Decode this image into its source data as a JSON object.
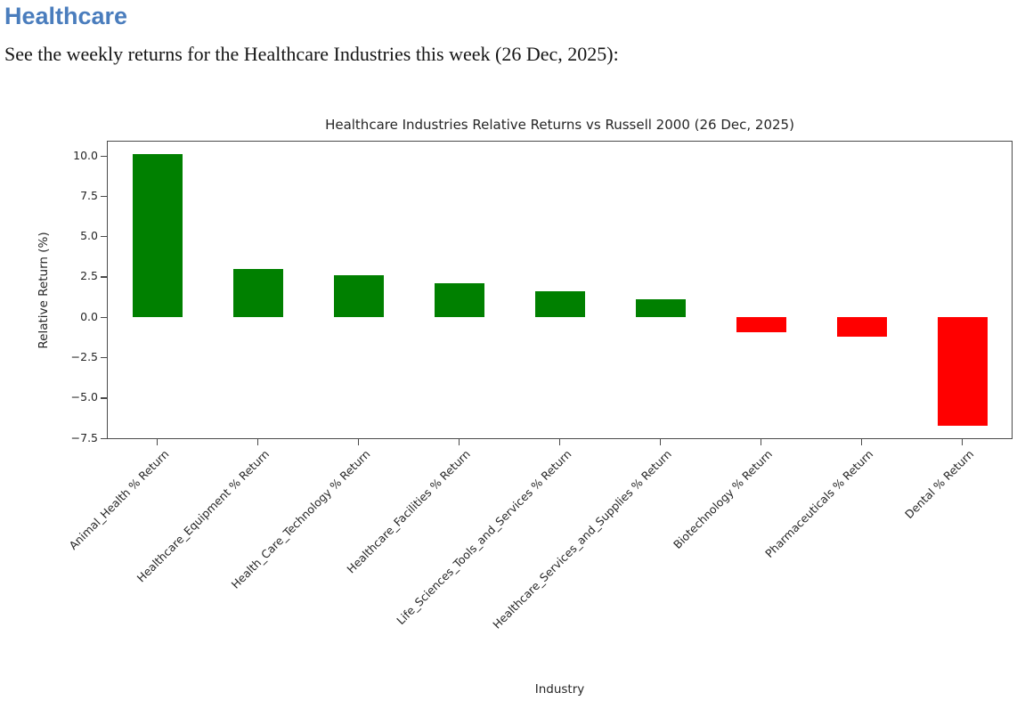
{
  "page": {
    "heading": "Healthcare",
    "heading_color": "#4a7dbd",
    "subtitle": "See the weekly returns for the Healthcare Industries this week (26 Dec, 2025):"
  },
  "chart_data": {
    "type": "bar",
    "title": "Healthcare Industries Relative Returns vs Russell 2000 (26 Dec, 2025)",
    "xlabel": "Industry",
    "ylabel": "Relative Return (%)",
    "categories": [
      "Animal_Health % Return",
      "Healthcare_Equipment % Return",
      "Health_Care_Technology % Return",
      "Healthcare_Facilities % Return",
      "Life_Sciences_Tools_and_Services % Return",
      "Healthcare_Services_and_Supplies % Return",
      "Biotechnology % Return",
      "Pharmaceuticals % Return",
      "Dental % Return"
    ],
    "values": [
      10.1,
      3.0,
      2.6,
      2.1,
      1.6,
      1.1,
      -0.9,
      -1.2,
      -6.7
    ],
    "positive_color": "#008000",
    "negative_color": "#ff0000",
    "ylim": [
      -7.54,
      10.94
    ],
    "yticks": [
      10.0,
      7.5,
      5.0,
      2.5,
      0.0,
      -2.5,
      -5.0,
      -7.5
    ],
    "x_tick_rotation_deg": 45,
    "grid": false,
    "legend": "none"
  }
}
